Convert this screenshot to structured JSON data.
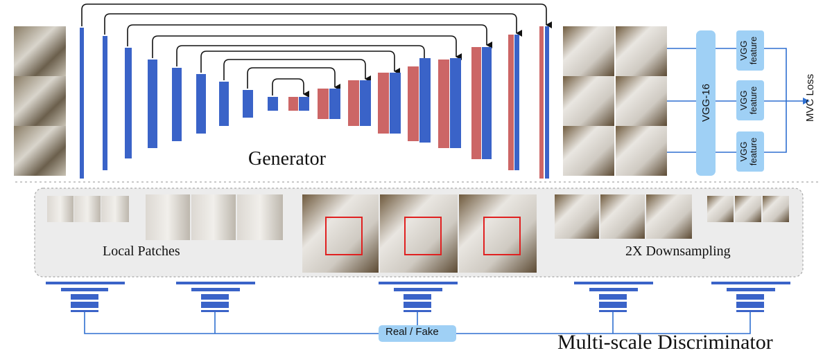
{
  "labels": {
    "generator": "Generator",
    "local_patches": "Local Patches",
    "downsampling": "2X Downsampling",
    "multi_scale_discriminator": "Multi-scale Discriminator",
    "real_fake": "Real / Fake",
    "mvc_loss": "MVC Loss",
    "vgg16": "VGG-16",
    "vgg_feature": [
      "VGG feature",
      "VGG feature",
      "VGG feature"
    ]
  },
  "colors": {
    "encoder_blue": "#3a63c8",
    "skip_red": "#cc6666",
    "line_blue": "#2f6fd0",
    "vgg_box": "#9fd0f5",
    "panel_gray": "#ececec",
    "patch_box_red": "#e02020",
    "arrow_black": "#111111"
  }
}
